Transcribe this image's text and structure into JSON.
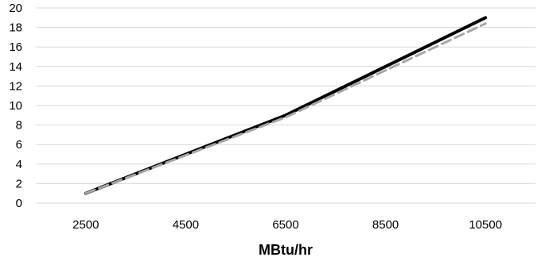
{
  "chart_data": {
    "type": "line",
    "title": "",
    "xlabel": "MBtu/hr",
    "ylabel": "",
    "x": [
      2500,
      4500,
      6500,
      8500,
      10500
    ],
    "x_tick_labels": [
      "2500",
      "4500",
      "6500",
      "8500",
      "10500"
    ],
    "ylim": [
      0,
      20
    ],
    "y_ticks": [
      0,
      2,
      4,
      6,
      8,
      10,
      12,
      14,
      16,
      18,
      20
    ],
    "grid": "horizontal",
    "legend": "none",
    "series": [
      {
        "values": [
          1.0,
          5.0,
          9.0,
          14.0,
          19.0
        ],
        "color": "#000000",
        "style": "solid"
      },
      {
        "values": [
          1.0,
          4.9,
          8.8,
          13.6,
          18.4
        ],
        "color": "#a6a6a6",
        "style": "dashed"
      }
    ]
  }
}
